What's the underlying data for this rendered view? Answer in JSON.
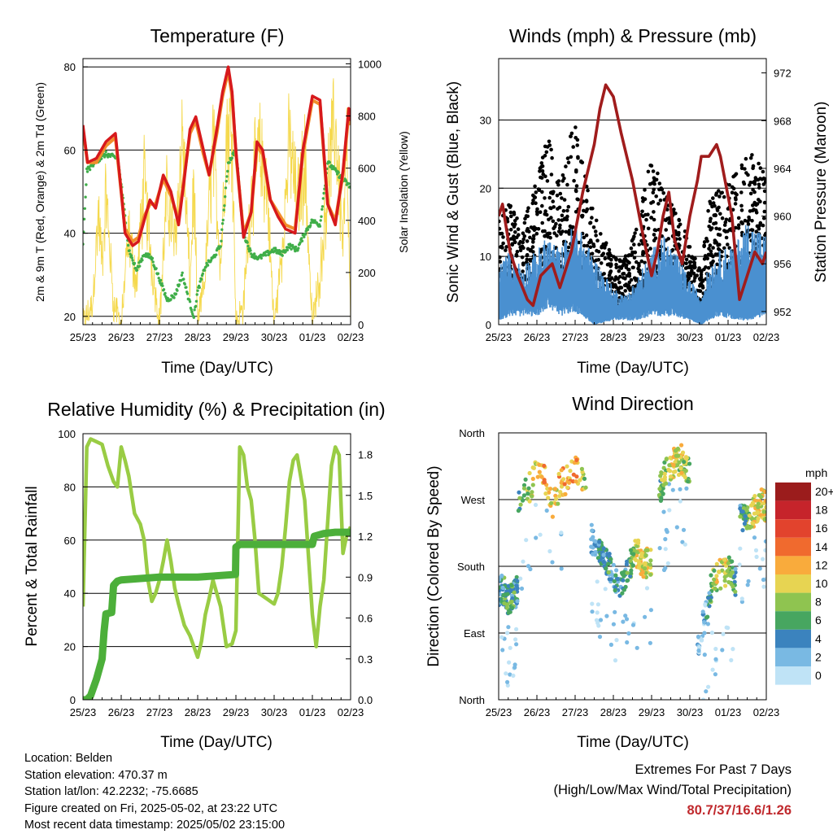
{
  "time_ticks": [
    "25/23",
    "26/23",
    "27/23",
    "28/23",
    "29/23",
    "30/23",
    "01/23",
    "02/23"
  ],
  "footer": {
    "location": "Location: Belden",
    "elevation": "Station elevation: 470.37 m",
    "latlon": "Station lat/lon: 42.2232; -75.6685",
    "created": "Figure created on Fri, 2025-05-02, at 23:22 UTC",
    "recent": "Most recent data timestamp: 2025/05/02 23:15:00"
  },
  "extremes": {
    "title": "Extremes For Past 7 Days",
    "subtitle": "(High/Low/Max Wind/Total Precipitation)",
    "values": "80.7/37/16.6/1.26"
  },
  "chart_data": [
    {
      "id": "temperature",
      "type": "line",
      "title": "Temperature (F)",
      "xlabel": "Time (Day/UTC)",
      "ylabel": "2m & 9m T (Red, Orange) & 2m Td (Green)",
      "y2label": "Solar Insolation (Yellow)",
      "ylim": [
        18,
        82
      ],
      "y2lim": [
        0,
        1020
      ],
      "xlim": [
        0,
        7
      ],
      "yticks": [
        "20",
        "40",
        "60",
        "80"
      ],
      "y2ticks": [
        "0",
        "200",
        "400",
        "600",
        "800",
        "1000"
      ],
      "grid_y": [
        20,
        40,
        60,
        80
      ],
      "colors": {
        "t2m": "#d7191c",
        "t9m": "#f28e2b",
        "td": "#3fae49",
        "solar": "#f5d94e"
      },
      "series": [
        {
          "key": "t2m",
          "x": [
            0,
            0.12,
            0.35,
            0.6,
            0.85,
            1.0,
            1.1,
            1.3,
            1.45,
            1.6,
            1.75,
            1.9,
            2.1,
            2.3,
            2.5,
            2.65,
            2.8,
            2.95,
            3.15,
            3.3,
            3.5,
            3.65,
            3.8,
            3.9,
            4.0,
            4.2,
            4.4,
            4.55,
            4.7,
            4.9,
            5.1,
            5.3,
            5.55,
            5.75,
            6.0,
            6.2,
            6.4,
            6.6,
            6.8,
            6.95,
            7.0
          ],
          "y": [
            66,
            57,
            58,
            62,
            64,
            50,
            40,
            37,
            38,
            43,
            48,
            46,
            54,
            50,
            42,
            53,
            65,
            68,
            60,
            54,
            65,
            74,
            80,
            74,
            60,
            39,
            45,
            62,
            60,
            48,
            44,
            41,
            40,
            60,
            73,
            72,
            47,
            42,
            55,
            70,
            67
          ]
        },
        {
          "key": "t9m",
          "x": [
            0,
            0.12,
            0.35,
            0.6,
            0.85,
            1.0,
            1.1,
            1.3,
            1.45,
            1.6,
            1.75,
            1.9,
            2.1,
            2.3,
            2.5,
            2.65,
            2.8,
            2.95,
            3.15,
            3.3,
            3.5,
            3.65,
            3.8,
            3.9,
            4.0,
            4.2,
            4.4,
            4.55,
            4.7,
            4.9,
            5.1,
            5.3,
            5.55,
            5.75,
            6.0,
            6.2,
            6.4,
            6.6,
            6.8,
            6.95,
            7.0
          ],
          "y": [
            65,
            57,
            57,
            61,
            63,
            50,
            41,
            38,
            39,
            44,
            47,
            47,
            53,
            49,
            43,
            54,
            64,
            67,
            59,
            54,
            64,
            73,
            79,
            73,
            59,
            40,
            45,
            61,
            59,
            48,
            45,
            42,
            41,
            59,
            72,
            71,
            47,
            43,
            54,
            69,
            66
          ]
        },
        {
          "key": "td",
          "x": [
            0,
            0.1,
            0.3,
            0.6,
            0.9,
            1.0,
            1.2,
            1.4,
            1.6,
            1.8,
            2.0,
            2.2,
            2.4,
            2.6,
            2.8,
            2.9,
            3.0,
            3.2,
            3.4,
            3.6,
            3.8,
            4.0,
            4.2,
            4.4,
            4.6,
            4.8,
            5.0,
            5.2,
            5.4,
            5.6,
            5.8,
            6.0,
            6.2,
            6.4,
            6.6,
            6.8,
            7.0
          ],
          "y": [
            37,
            55,
            57,
            59,
            58,
            52,
            36,
            31,
            35,
            34,
            29,
            24,
            25,
            30,
            23,
            20,
            26,
            32,
            34,
            37,
            57,
            60,
            40,
            35,
            34,
            35,
            36,
            35,
            37,
            36,
            40,
            43,
            42,
            57,
            55,
            53,
            51
          ]
        },
        {
          "key": "solar",
          "x": [
            0,
            0.25,
            0.4,
            0.5,
            0.6,
            0.8,
            1.0,
            1.2,
            1.4,
            1.6,
            1.8,
            2.0,
            2.2,
            2.4,
            2.6,
            2.8,
            2.9,
            3.0,
            3.2,
            3.4,
            3.6,
            3.75,
            3.9,
            4.0,
            4.2,
            4.4,
            4.6,
            4.8,
            5.0,
            5.2,
            5.4,
            5.6,
            5.8,
            6.0,
            6.2,
            6.4,
            6.6,
            6.8,
            6.9,
            7.0
          ],
          "y": [
            0,
            100,
            550,
            300,
            650,
            100,
            0,
            450,
            200,
            700,
            300,
            0,
            650,
            400,
            950,
            200,
            700,
            0,
            250,
            900,
            300,
            950,
            1000,
            0,
            100,
            650,
            850,
            700,
            0,
            350,
            900,
            600,
            800,
            0,
            250,
            700,
            1000,
            400,
            850,
            0
          ]
        }
      ]
    },
    {
      "id": "winds",
      "type": "scatter",
      "title": "Winds (mph) & Pressure (mb)",
      "xlabel": "Time (Day/UTC)",
      "ylabel": "Sonic Wind & Gust (Blue, Black)",
      "y2label": "Station Pressure (Maroon)",
      "ylim": [
        0,
        39
      ],
      "y2lim": [
        950.9,
        973.2
      ],
      "xlim": [
        0,
        7
      ],
      "yticks": [
        "0",
        "10",
        "20",
        "30"
      ],
      "y2ticks": [
        "952",
        "956",
        "960",
        "964",
        "968",
        "972"
      ],
      "grid_y": [
        10,
        20,
        30
      ],
      "colors": {
        "wind": "#4a90d0",
        "gust": "#000000",
        "pressure": "#a01c1c"
      },
      "wind_envelope": {
        "x": [
          0,
          0.3,
          0.6,
          1.0,
          1.3,
          1.6,
          2.0,
          2.5,
          3.0,
          3.3,
          3.6,
          4.0,
          4.3,
          4.6,
          5.0,
          5.3,
          5.5,
          5.8,
          6.2,
          6.5,
          7.0
        ],
        "low": [
          1,
          2,
          2,
          2,
          4,
          2,
          3,
          0,
          1,
          1,
          1,
          2,
          2,
          2,
          1,
          0,
          1,
          2,
          1,
          1,
          2
        ],
        "high": [
          8,
          10,
          8,
          10,
          12,
          10,
          14,
          9,
          5,
          4,
          6,
          10,
          12,
          10,
          6,
          4,
          8,
          10,
          11,
          14,
          12
        ]
      },
      "gust_envelope": {
        "x": [
          0,
          0.3,
          0.6,
          1.0,
          1.3,
          1.6,
          2.0,
          2.5,
          3.0,
          3.3,
          3.6,
          4.0,
          4.3,
          4.6,
          5.0,
          5.3,
          5.5,
          5.8,
          6.2,
          6.5,
          7.0
        ],
        "low": [
          2,
          4,
          4,
          5,
          8,
          6,
          8,
          2,
          2,
          2,
          3,
          5,
          5,
          5,
          3,
          1,
          4,
          5,
          3,
          4,
          5
        ],
        "high": [
          16,
          18,
          14,
          22,
          28,
          24,
          30,
          16,
          10,
          10,
          14,
          26,
          20,
          18,
          12,
          8,
          18,
          20,
          22,
          26,
          24
        ]
      },
      "pressure": {
        "x": [
          0,
          0.1,
          0.3,
          0.5,
          0.75,
          0.9,
          1.1,
          1.4,
          1.6,
          1.9,
          2.2,
          2.5,
          2.65,
          2.8,
          3.0,
          3.2,
          3.5,
          3.8,
          4.0,
          4.15,
          4.3,
          4.45,
          4.6,
          4.8,
          5.0,
          5.2,
          5.3,
          5.5,
          5.7,
          5.8,
          6.1,
          6.3,
          6.5,
          6.7,
          6.9,
          7.0
        ],
        "y": [
          960,
          961,
          957,
          955,
          953,
          952.5,
          955,
          956,
          954,
          957,
          962,
          966,
          969,
          971,
          970,
          967,
          963,
          958,
          955,
          957,
          960,
          962,
          958,
          956,
          960,
          963,
          965,
          965,
          966,
          965,
          960,
          953,
          955,
          957,
          956,
          957
        ]
      }
    },
    {
      "id": "humidity",
      "type": "line",
      "title": "Relative Humidity (%) & Precipitation (in)",
      "xlabel": "Time (Day/UTC)",
      "ylabel": "Percent & Total Rainfall",
      "ylim": [
        0,
        100
      ],
      "y2lim": [
        0,
        1.953
      ],
      "xlim": [
        0,
        7
      ],
      "yticks": [
        "0",
        "20",
        "40",
        "60",
        "80",
        "100"
      ],
      "y2ticks": [
        "0.0",
        "0.3",
        "0.6",
        "0.9",
        "1.2",
        "1.5",
        "1.8"
      ],
      "grid_y": [
        20,
        40,
        60,
        80
      ],
      "colors": {
        "rh": "#99cc44",
        "precip": "#4caf3a"
      },
      "series": [
        {
          "key": "rh",
          "x": [
            0,
            0.1,
            0.2,
            0.35,
            0.5,
            0.65,
            0.8,
            0.9,
            1.0,
            1.1,
            1.2,
            1.35,
            1.5,
            1.6,
            1.7,
            1.8,
            1.9,
            2.0,
            2.1,
            2.2,
            2.3,
            2.4,
            2.5,
            2.65,
            2.8,
            2.9,
            3.0,
            3.1,
            3.2,
            3.3,
            3.4,
            3.5,
            3.6,
            3.75,
            3.9,
            4.0,
            4.1,
            4.2,
            4.3,
            4.4,
            4.5,
            4.6,
            4.8,
            5.0,
            5.1,
            5.2,
            5.3,
            5.4,
            5.5,
            5.6,
            5.8,
            6.0,
            6.1,
            6.2,
            6.3,
            6.5,
            6.6,
            6.7,
            6.8,
            6.9,
            7.0
          ],
          "y": [
            35,
            95,
            98,
            97,
            96,
            88,
            82,
            80,
            95,
            90,
            84,
            70,
            66,
            60,
            45,
            37,
            40,
            45,
            52,
            60,
            52,
            42,
            36,
            28,
            24,
            20,
            16,
            22,
            32,
            38,
            45,
            40,
            35,
            20,
            21,
            26,
            95,
            92,
            80,
            75,
            60,
            40,
            38,
            36,
            40,
            50,
            65,
            82,
            90,
            92,
            75,
            32,
            20,
            35,
            45,
            88,
            95,
            92,
            55,
            62,
            65
          ]
        },
        {
          "key": "precip",
          "x": [
            0,
            0.1,
            0.2,
            0.35,
            0.5,
            0.55,
            0.6,
            0.75,
            0.8,
            0.9,
            1.0,
            1.5,
            2.0,
            3.0,
            3.99,
            4.0,
            4.1,
            4.5,
            5.0,
            5.5,
            6.0,
            6.05,
            6.3,
            6.6,
            7.0
          ],
          "y": [
            0,
            0,
            0.03,
            0.15,
            0.3,
            0.5,
            0.63,
            0.64,
            0.84,
            0.87,
            0.88,
            0.89,
            0.9,
            0.9,
            0.92,
            1.12,
            1.14,
            1.14,
            1.14,
            1.14,
            1.14,
            1.2,
            1.22,
            1.23,
            1.23
          ]
        }
      ]
    },
    {
      "id": "wind_direction",
      "type": "scatter",
      "title": "Wind Direction",
      "xlabel": "Time (Day/UTC)",
      "ylabel": "Direction (Colored By Speed)",
      "ylim": [
        0,
        360
      ],
      "xlim": [
        0,
        7
      ],
      "yticks": [
        {
          "label": "North",
          "value": 0
        },
        {
          "label": "East",
          "value": 90
        },
        {
          "label": "South",
          "value": 180
        },
        {
          "label": "West",
          "value": 270
        },
        {
          "label": "North",
          "value": 360
        }
      ],
      "grid_y": [
        90,
        180,
        270
      ],
      "colorbar": {
        "title": "mph",
        "labels": [
          "20+",
          "18",
          "16",
          "14",
          "12",
          "10",
          "8",
          "6",
          "4",
          "2",
          "0"
        ],
        "colors": [
          "#9b1c1c",
          "#c6242b",
          "#e2432d",
          "#f06a2e",
          "#f9ab3c",
          "#e7d452",
          "#8fc450",
          "#47a660",
          "#3b83be",
          "#79b9e3",
          "#bfe3f6"
        ]
      },
      "clusters": [
        {
          "x": [
            0,
            0.1,
            0.25,
            0.4,
            0.5
          ],
          "dir": [
            145,
            150,
            135,
            140,
            150
          ],
          "speed": [
            5,
            6,
            7,
            6,
            5
          ]
        },
        {
          "x": [
            0.5,
            0.8,
            1.0,
            1.2,
            1.4,
            1.6,
            1.8,
            2.0,
            2.15,
            2.3
          ],
          "dir": [
            270,
            285,
            310,
            300,
            265,
            290,
            300,
            315,
            300,
            275
          ],
          "speed": [
            7,
            10,
            12,
            13,
            11,
            12,
            13,
            14,
            11,
            8
          ]
        },
        {
          "x": [
            2.4,
            2.6,
            2.8,
            3.0,
            3.2
          ],
          "dir": [
            220,
            200,
            190,
            165,
            140
          ],
          "speed": [
            4,
            5,
            6,
            5,
            4
          ]
        },
        {
          "x": [
            3.2,
            3.4,
            3.6,
            3.8,
            4.0
          ],
          "dir": [
            150,
            175,
            200,
            180,
            190
          ],
          "speed": [
            5,
            7,
            10,
            11,
            9
          ]
        },
        {
          "x": [
            4.2,
            4.4,
            4.6,
            4.8,
            5.0
          ],
          "dir": [
            280,
            310,
            320,
            325,
            305
          ],
          "speed": [
            7,
            9,
            11,
            10,
            8
          ]
        },
        {
          "x": [
            5.2,
            5.4,
            5.6,
            5.8,
            6.0,
            6.2
          ],
          "dir": [
            70,
            110,
            160,
            170,
            175,
            160
          ],
          "speed": [
            2,
            3,
            9,
            11,
            10,
            6
          ]
        },
        {
          "x": [
            6.3,
            6.5,
            6.7,
            6.9,
            7.0
          ],
          "dir": [
            250,
            240,
            255,
            265,
            260
          ],
          "speed": [
            6,
            8,
            11,
            12,
            10
          ]
        }
      ]
    }
  ]
}
